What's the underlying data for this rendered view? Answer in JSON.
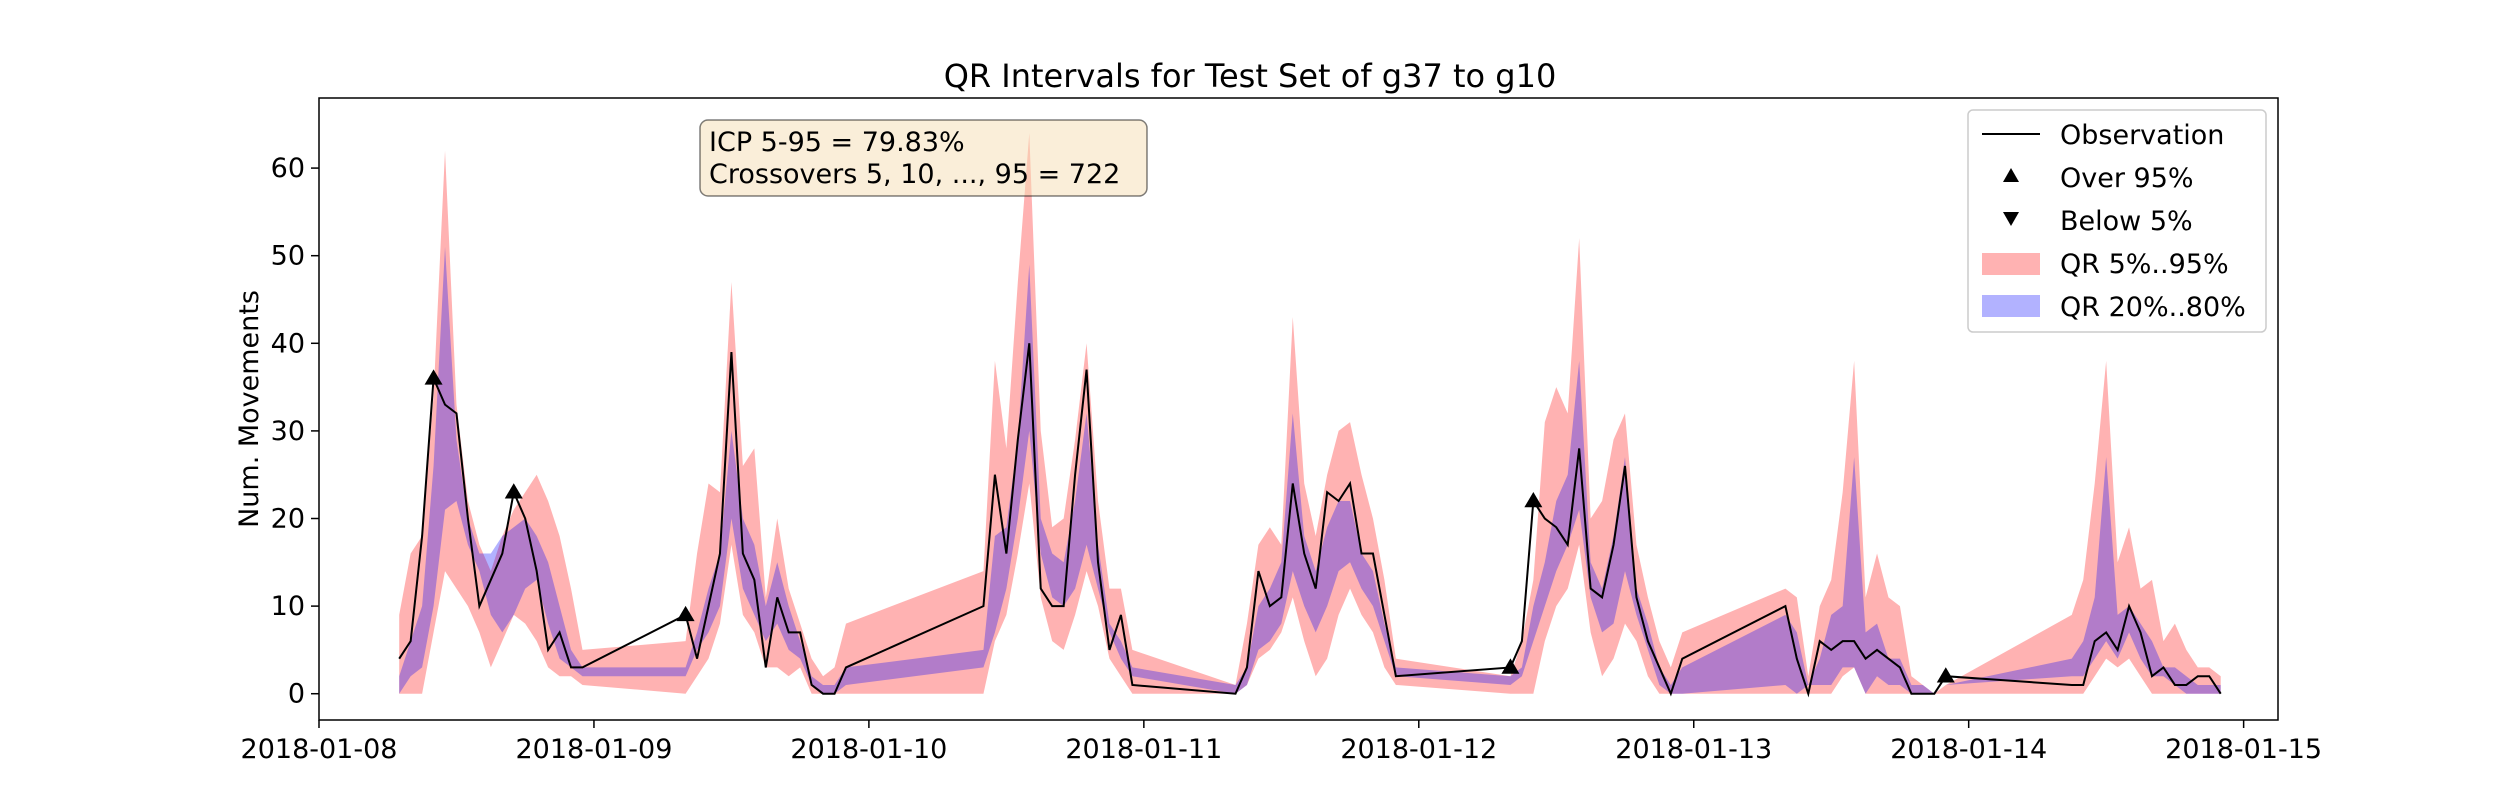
{
  "chart_data": {
    "type": "area",
    "title": "QR Intervals for Test Set of g37 to g10",
    "xlabel": "",
    "ylabel": "Num. Movements",
    "ylim": [
      -3,
      68
    ],
    "xlim": [
      "2018-01-08 00:00",
      "2018-01-15 03:00"
    ],
    "grid": false,
    "legend_position": "top-right",
    "colors": {
      "band_outer": "#ff0000",
      "band_inner": "#0000ff",
      "observation": "#000000"
    },
    "x_ticks": [
      "2018-01-08",
      "2018-01-09",
      "2018-01-10",
      "2018-01-11",
      "2018-01-12",
      "2018-01-13",
      "2018-01-14",
      "2018-01-15"
    ],
    "y_ticks": [
      0,
      10,
      20,
      30,
      40,
      50,
      60
    ],
    "legend": [
      {
        "label": "Observation",
        "marker": "line"
      },
      {
        "label": "Over 95%",
        "marker": "triangle-up"
      },
      {
        "label": "Below 5%",
        "marker": "triangle-down"
      },
      {
        "label": "QR 5%..95%",
        "marker": "patch-red"
      },
      {
        "label": "QR 20%..80%",
        "marker": "patch-blue"
      }
    ],
    "annotation": {
      "line1": "ICP 5-95 = 79.83%",
      "line2": "Crossovers 5, 10, ..., 95 = 722"
    },
    "series": [
      {
        "name": "Observation",
        "x": [
          "2018-01-08 07:00",
          "2018-01-08 08:00",
          "2018-01-08 09:00",
          "2018-01-08 10:00",
          "2018-01-08 11:00",
          "2018-01-08 12:00",
          "2018-01-08 13:00",
          "2018-01-08 14:00",
          "2018-01-08 15:00",
          "2018-01-08 16:00",
          "2018-01-08 17:00",
          "2018-01-08 18:00",
          "2018-01-08 19:00",
          "2018-01-08 20:00",
          "2018-01-08 21:00",
          "2018-01-08 22:00",
          "2018-01-08 23:00",
          "2018-01-09 08:00",
          "2018-01-09 09:00",
          "2018-01-09 10:00",
          "2018-01-09 11:00",
          "2018-01-09 12:00",
          "2018-01-09 13:00",
          "2018-01-09 14:00",
          "2018-01-09 15:00",
          "2018-01-09 16:00",
          "2018-01-09 17:00",
          "2018-01-09 18:00",
          "2018-01-09 19:00",
          "2018-01-09 20:00",
          "2018-01-09 21:00",
          "2018-01-09 22:00",
          "2018-01-10 10:00",
          "2018-01-10 11:00",
          "2018-01-10 12:00",
          "2018-01-10 13:00",
          "2018-01-10 14:00",
          "2018-01-10 15:00",
          "2018-01-10 16:00",
          "2018-01-10 17:00",
          "2018-01-10 18:00",
          "2018-01-10 19:00",
          "2018-01-10 20:00",
          "2018-01-10 21:00",
          "2018-01-10 22:00",
          "2018-01-10 23:00",
          "2018-01-11 08:00",
          "2018-01-11 09:00",
          "2018-01-11 10:00",
          "2018-01-11 11:00",
          "2018-01-11 12:00",
          "2018-01-11 13:00",
          "2018-01-11 14:00",
          "2018-01-11 15:00",
          "2018-01-11 16:00",
          "2018-01-11 17:00",
          "2018-01-11 18:00",
          "2018-01-11 19:00",
          "2018-01-11 20:00",
          "2018-01-11 21:00",
          "2018-01-11 22:00",
          "2018-01-12 08:00",
          "2018-01-12 09:00",
          "2018-01-12 10:00",
          "2018-01-12 11:00",
          "2018-01-12 12:00",
          "2018-01-12 13:00",
          "2018-01-12 14:00",
          "2018-01-12 15:00",
          "2018-01-12 16:00",
          "2018-01-12 17:00",
          "2018-01-12 18:00",
          "2018-01-12 19:00",
          "2018-01-12 20:00",
          "2018-01-12 21:00",
          "2018-01-12 22:00",
          "2018-01-12 23:00",
          "2018-01-13 08:00",
          "2018-01-13 09:00",
          "2018-01-13 10:00",
          "2018-01-13 11:00",
          "2018-01-13 12:00",
          "2018-01-13 13:00",
          "2018-01-13 14:00",
          "2018-01-13 15:00",
          "2018-01-13 16:00",
          "2018-01-13 17:00",
          "2018-01-13 18:00",
          "2018-01-13 19:00",
          "2018-01-13 20:00",
          "2018-01-13 21:00",
          "2018-01-13 22:00",
          "2018-01-14 09:00",
          "2018-01-14 10:00",
          "2018-01-14 11:00",
          "2018-01-14 12:00",
          "2018-01-14 13:00",
          "2018-01-14 14:00",
          "2018-01-14 15:00",
          "2018-01-14 16:00",
          "2018-01-14 17:00",
          "2018-01-14 18:00",
          "2018-01-14 19:00",
          "2018-01-14 20:00",
          "2018-01-14 21:00",
          "2018-01-14 22:00"
        ],
        "y": [
          4,
          6,
          18,
          36,
          33,
          32,
          20,
          10,
          13,
          16,
          23,
          20,
          14,
          5,
          7,
          3,
          3,
          9,
          4,
          10,
          16,
          39,
          16,
          13,
          3,
          11,
          7,
          7,
          1,
          0,
          0,
          3,
          10,
          25,
          16,
          29,
          40,
          12,
          10,
          10,
          25,
          37,
          15,
          5,
          9,
          1,
          0,
          3,
          14,
          10,
          11,
          24,
          16,
          12,
          23,
          22,
          24,
          16,
          16,
          9,
          2,
          3,
          6,
          22,
          20,
          19,
          17,
          28,
          12,
          11,
          17,
          26,
          11,
          6,
          3,
          0,
          4,
          10,
          4,
          0,
          6,
          5,
          6,
          6,
          4,
          5,
          4,
          3,
          0,
          0,
          0,
          2,
          1,
          1,
          6,
          7,
          5,
          10,
          7,
          2,
          3,
          1,
          1,
          2,
          2,
          0
        ]
      },
      {
        "name": "QR 5%..95%",
        "lower": [
          0,
          0,
          0,
          7,
          14,
          12,
          10,
          7,
          3,
          6,
          9,
          8,
          6,
          3,
          2,
          2,
          1,
          0,
          2,
          4,
          8,
          17,
          9,
          7,
          3,
          3,
          2,
          3,
          0,
          0,
          0,
          0,
          0,
          6,
          9,
          16,
          24,
          11,
          6,
          5,
          9,
          14,
          10,
          4,
          2,
          0,
          0,
          1,
          4,
          5,
          7,
          11,
          6,
          2,
          4,
          9,
          12,
          9,
          7,
          3,
          1,
          0,
          0,
          0,
          6,
          10,
          12,
          17,
          7,
          2,
          4,
          8,
          6,
          2,
          0,
          0,
          0,
          0,
          0,
          0,
          0,
          0,
          2,
          3,
          0,
          0,
          0,
          0,
          0,
          0,
          0,
          0,
          0,
          0,
          2,
          4,
          3,
          4,
          2,
          0,
          0,
          0,
          0,
          0,
          0,
          0
        ],
        "upper": [
          9,
          16,
          18,
          34,
          62,
          33,
          22,
          17,
          14,
          18,
          21,
          23,
          25,
          22,
          18,
          12,
          5,
          6,
          16,
          24,
          23,
          47,
          26,
          28,
          11,
          20,
          12,
          8,
          4,
          2,
          3,
          8,
          14,
          38,
          28,
          47,
          64,
          30,
          19,
          20,
          29,
          40,
          22,
          12,
          12,
          5,
          1,
          8,
          17,
          19,
          17,
          43,
          24,
          18,
          25,
          30,
          31,
          25,
          20,
          13,
          4,
          2,
          6,
          13,
          31,
          35,
          32,
          52,
          20,
          22,
          29,
          32,
          17,
          11,
          6,
          3,
          7,
          12,
          11,
          2,
          10,
          13,
          23,
          38,
          11,
          16,
          11,
          10,
          2,
          1,
          0,
          1,
          9,
          13,
          24,
          38,
          15,
          19,
          12,
          13,
          6,
          8,
          5,
          3,
          3,
          2
        ]
      },
      {
        "name": "QR 20%..80%",
        "lower": [
          0,
          2,
          3,
          10,
          21,
          22,
          17,
          14,
          9,
          7,
          9,
          12,
          13,
          8,
          4,
          3,
          2,
          2,
          5,
          7,
          10,
          20,
          12,
          9,
          6,
          8,
          5,
          4,
          1,
          0,
          0,
          1,
          3,
          7,
          12,
          20,
          30,
          16,
          11,
          10,
          12,
          17,
          12,
          7,
          4,
          2,
          0,
          1,
          5,
          6,
          8,
          14,
          10,
          7,
          10,
          14,
          15,
          12,
          10,
          6,
          2,
          1,
          2,
          6,
          10,
          14,
          17,
          21,
          11,
          7,
          8,
          14,
          9,
          5,
          1,
          0,
          0,
          1,
          0,
          1,
          1,
          1,
          3,
          3,
          0,
          2,
          1,
          1,
          0,
          0,
          0,
          1,
          2,
          2,
          4,
          6,
          4,
          7,
          4,
          2,
          2,
          1,
          0,
          0,
          0,
          0
        ],
        "upper": [
          2,
          6,
          10,
          26,
          51,
          29,
          20,
          16,
          16,
          18,
          19,
          20,
          18,
          15,
          10,
          5,
          3,
          3,
          7,
          12,
          16,
          30,
          20,
          17,
          10,
          15,
          10,
          6,
          2,
          1,
          1,
          3,
          5,
          18,
          19,
          29,
          49,
          20,
          16,
          15,
          22,
          32,
          17,
          8,
          6,
          3,
          1,
          3,
          10,
          12,
          15,
          32,
          18,
          14,
          19,
          22,
          22,
          16,
          14,
          8,
          3,
          2,
          3,
          10,
          15,
          22,
          25,
          38,
          15,
          12,
          18,
          27,
          12,
          8,
          3,
          1,
          3,
          9,
          7,
          1,
          4,
          9,
          10,
          27,
          7,
          8,
          4,
          4,
          1,
          1,
          0,
          1,
          4,
          6,
          11,
          27,
          9,
          10,
          8,
          6,
          3,
          3,
          2,
          1,
          1,
          1
        ]
      }
    ]
  }
}
